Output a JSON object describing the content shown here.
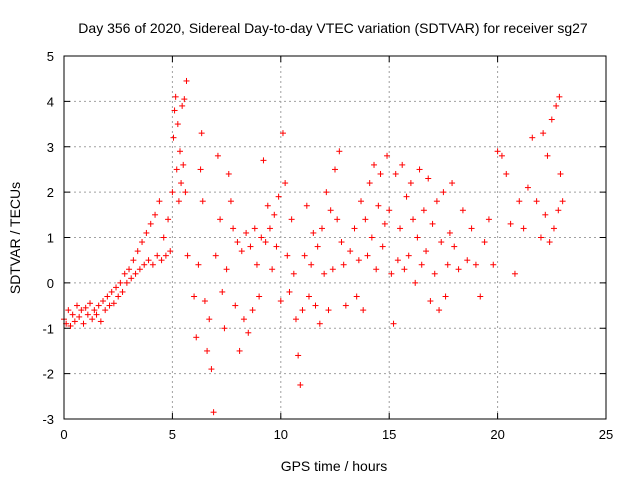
{
  "chart_data": {
    "type": "scatter",
    "title": "Day 356 of 2020, Sidereal Day-to-day VTEC variation (SDTVAR) for receiver sg27",
    "xlabel": "GPS time / hours",
    "ylabel": "SDTVAR / TECUs",
    "xlim": [
      0,
      25
    ],
    "ylim": [
      -3,
      5
    ],
    "xticks": [
      "0",
      "5",
      "10",
      "15",
      "20",
      "25"
    ],
    "yticks": [
      "-3",
      "-2",
      "-1",
      "0",
      "1",
      "2",
      "3",
      "4",
      "5"
    ],
    "grid": true,
    "marker": "+",
    "color": "#ff0000",
    "series": [
      {
        "name": "SDTVAR",
        "points": [
          [
            0.0,
            -0.8
          ],
          [
            0.1,
            -0.9
          ],
          [
            0.2,
            -0.6
          ],
          [
            0.3,
            -0.95
          ],
          [
            0.4,
            -0.7
          ],
          [
            0.5,
            -0.85
          ],
          [
            0.6,
            -0.5
          ],
          [
            0.7,
            -0.75
          ],
          [
            0.8,
            -0.6
          ],
          [
            0.9,
            -0.9
          ],
          [
            1.0,
            -0.55
          ],
          [
            1.1,
            -0.7
          ],
          [
            1.2,
            -0.45
          ],
          [
            1.3,
            -0.8
          ],
          [
            1.4,
            -0.6
          ],
          [
            1.5,
            -0.7
          ],
          [
            1.6,
            -0.5
          ],
          [
            1.7,
            -0.85
          ],
          [
            1.8,
            -0.4
          ],
          [
            1.9,
            -0.6
          ],
          [
            2.0,
            -0.3
          ],
          [
            2.1,
            -0.5
          ],
          [
            2.2,
            -0.2
          ],
          [
            2.3,
            -0.45
          ],
          [
            2.4,
            -0.1
          ],
          [
            2.5,
            -0.3
          ],
          [
            2.6,
            0.0
          ],
          [
            2.7,
            -0.2
          ],
          [
            2.8,
            0.2
          ],
          [
            2.9,
            0.0
          ],
          [
            3.0,
            0.3
          ],
          [
            3.1,
            0.1
          ],
          [
            3.2,
            0.5
          ],
          [
            3.3,
            0.2
          ],
          [
            3.4,
            0.7
          ],
          [
            3.5,
            0.3
          ],
          [
            3.6,
            0.9
          ],
          [
            3.7,
            0.4
          ],
          [
            3.8,
            1.1
          ],
          [
            3.9,
            0.5
          ],
          [
            4.0,
            1.3
          ],
          [
            4.1,
            0.4
          ],
          [
            4.2,
            1.5
          ],
          [
            4.3,
            0.6
          ],
          [
            4.4,
            1.8
          ],
          [
            4.5,
            0.5
          ],
          [
            4.6,
            1.0
          ],
          [
            4.7,
            0.6
          ],
          [
            4.8,
            1.4
          ],
          [
            4.9,
            0.7
          ],
          [
            5.0,
            2.0
          ],
          [
            5.05,
            3.2
          ],
          [
            5.1,
            3.8
          ],
          [
            5.15,
            4.1
          ],
          [
            5.2,
            2.5
          ],
          [
            5.25,
            3.5
          ],
          [
            5.3,
            1.8
          ],
          [
            5.35,
            2.9
          ],
          [
            5.4,
            2.2
          ],
          [
            5.45,
            3.9
          ],
          [
            5.5,
            2.6
          ],
          [
            5.55,
            4.05
          ],
          [
            5.6,
            2.0
          ],
          [
            5.65,
            4.45
          ],
          [
            5.7,
            0.6
          ],
          [
            6.0,
            -0.3
          ],
          [
            6.1,
            -1.2
          ],
          [
            6.2,
            0.4
          ],
          [
            6.3,
            2.5
          ],
          [
            6.35,
            3.3
          ],
          [
            6.4,
            1.8
          ],
          [
            6.5,
            -0.4
          ],
          [
            6.6,
            -1.5
          ],
          [
            6.7,
            -0.8
          ],
          [
            6.8,
            -1.9
          ],
          [
            6.9,
            -2.85
          ],
          [
            7.0,
            0.6
          ],
          [
            7.1,
            2.8
          ],
          [
            7.2,
            1.4
          ],
          [
            7.3,
            -0.2
          ],
          [
            7.4,
            -1.0
          ],
          [
            7.5,
            0.3
          ],
          [
            7.6,
            2.4
          ],
          [
            7.7,
            1.8
          ],
          [
            7.8,
            1.2
          ],
          [
            7.9,
            -0.5
          ],
          [
            8.0,
            0.9
          ],
          [
            8.1,
            -1.5
          ],
          [
            8.2,
            0.7
          ],
          [
            8.3,
            -0.8
          ],
          [
            8.4,
            1.1
          ],
          [
            8.5,
            -1.1
          ],
          [
            8.6,
            0.8
          ],
          [
            8.7,
            -0.6
          ],
          [
            8.8,
            1.2
          ],
          [
            8.9,
            0.4
          ],
          [
            9.0,
            -0.3
          ],
          [
            9.1,
            1.0
          ],
          [
            9.2,
            2.7
          ],
          [
            9.3,
            0.9
          ],
          [
            9.4,
            1.7
          ],
          [
            9.5,
            1.2
          ],
          [
            9.6,
            0.3
          ],
          [
            9.7,
            1.5
          ],
          [
            9.8,
            0.8
          ],
          [
            9.9,
            1.9
          ],
          [
            10.0,
            -0.4
          ],
          [
            10.1,
            3.3
          ],
          [
            10.2,
            2.2
          ],
          [
            10.3,
            0.6
          ],
          [
            10.4,
            -0.2
          ],
          [
            10.5,
            1.4
          ],
          [
            10.6,
            0.2
          ],
          [
            10.7,
            -0.8
          ],
          [
            10.8,
            -1.6
          ],
          [
            10.9,
            -2.25
          ],
          [
            11.0,
            -0.6
          ],
          [
            11.1,
            0.6
          ],
          [
            11.2,
            1.7
          ],
          [
            11.3,
            -0.3
          ],
          [
            11.4,
            0.4
          ],
          [
            11.5,
            1.1
          ],
          [
            11.6,
            -0.5
          ],
          [
            11.7,
            0.8
          ],
          [
            11.8,
            -0.9
          ],
          [
            11.9,
            1.2
          ],
          [
            12.0,
            0.2
          ],
          [
            12.1,
            2.0
          ],
          [
            12.2,
            -0.6
          ],
          [
            12.3,
            1.6
          ],
          [
            12.4,
            0.3
          ],
          [
            12.5,
            2.5
          ],
          [
            12.6,
            1.4
          ],
          [
            12.7,
            2.9
          ],
          [
            12.8,
            0.9
          ],
          [
            12.9,
            0.4
          ],
          [
            13.0,
            -0.5
          ],
          [
            13.2,
            0.7
          ],
          [
            13.4,
            1.2
          ],
          [
            13.5,
            -0.3
          ],
          [
            13.6,
            0.5
          ],
          [
            13.7,
            1.8
          ],
          [
            13.8,
            -0.6
          ],
          [
            13.9,
            1.4
          ],
          [
            14.0,
            0.6
          ],
          [
            14.1,
            2.2
          ],
          [
            14.2,
            1.0
          ],
          [
            14.3,
            2.6
          ],
          [
            14.4,
            0.3
          ],
          [
            14.5,
            1.7
          ],
          [
            14.6,
            2.4
          ],
          [
            14.7,
            0.8
          ],
          [
            14.8,
            1.3
          ],
          [
            14.9,
            2.8
          ],
          [
            15.0,
            1.6
          ],
          [
            15.1,
            0.2
          ],
          [
            15.2,
            -0.9
          ],
          [
            15.3,
            2.4
          ],
          [
            15.4,
            0.5
          ],
          [
            15.5,
            1.2
          ],
          [
            15.6,
            2.6
          ],
          [
            15.7,
            0.3
          ],
          [
            15.8,
            1.9
          ],
          [
            15.9,
            0.6
          ],
          [
            16.0,
            2.2
          ],
          [
            16.1,
            1.4
          ],
          [
            16.2,
            0.0
          ],
          [
            16.3,
            1.0
          ],
          [
            16.4,
            2.5
          ],
          [
            16.5,
            0.4
          ],
          [
            16.6,
            1.6
          ],
          [
            16.7,
            0.7
          ],
          [
            16.8,
            2.3
          ],
          [
            16.9,
            -0.4
          ],
          [
            17.0,
            1.3
          ],
          [
            17.1,
            0.2
          ],
          [
            17.2,
            1.8
          ],
          [
            17.3,
            -0.6
          ],
          [
            17.4,
            0.9
          ],
          [
            17.5,
            2.0
          ],
          [
            17.6,
            -0.3
          ],
          [
            17.7,
            0.4
          ],
          [
            17.8,
            1.1
          ],
          [
            17.9,
            2.2
          ],
          [
            18.0,
            0.8
          ],
          [
            18.2,
            0.3
          ],
          [
            18.4,
            1.6
          ],
          [
            18.6,
            0.5
          ],
          [
            18.8,
            1.2
          ],
          [
            19.0,
            0.4
          ],
          [
            19.2,
            -0.3
          ],
          [
            19.4,
            0.9
          ],
          [
            19.6,
            1.4
          ],
          [
            19.8,
            0.4
          ],
          [
            20.0,
            2.9
          ],
          [
            20.2,
            2.8
          ],
          [
            20.4,
            2.4
          ],
          [
            20.6,
            1.3
          ],
          [
            20.8,
            0.2
          ],
          [
            21.0,
            1.8
          ],
          [
            21.2,
            1.2
          ],
          [
            21.4,
            2.1
          ],
          [
            21.6,
            3.2
          ],
          [
            21.8,
            1.8
          ],
          [
            22.0,
            1.0
          ],
          [
            22.1,
            3.3
          ],
          [
            22.2,
            1.5
          ],
          [
            22.3,
            2.8
          ],
          [
            22.4,
            0.9
          ],
          [
            22.5,
            3.6
          ],
          [
            22.6,
            1.2
          ],
          [
            22.7,
            3.9
          ],
          [
            22.8,
            1.6
          ],
          [
            22.85,
            4.1
          ],
          [
            22.9,
            2.4
          ],
          [
            23.0,
            1.8
          ]
        ]
      }
    ]
  }
}
